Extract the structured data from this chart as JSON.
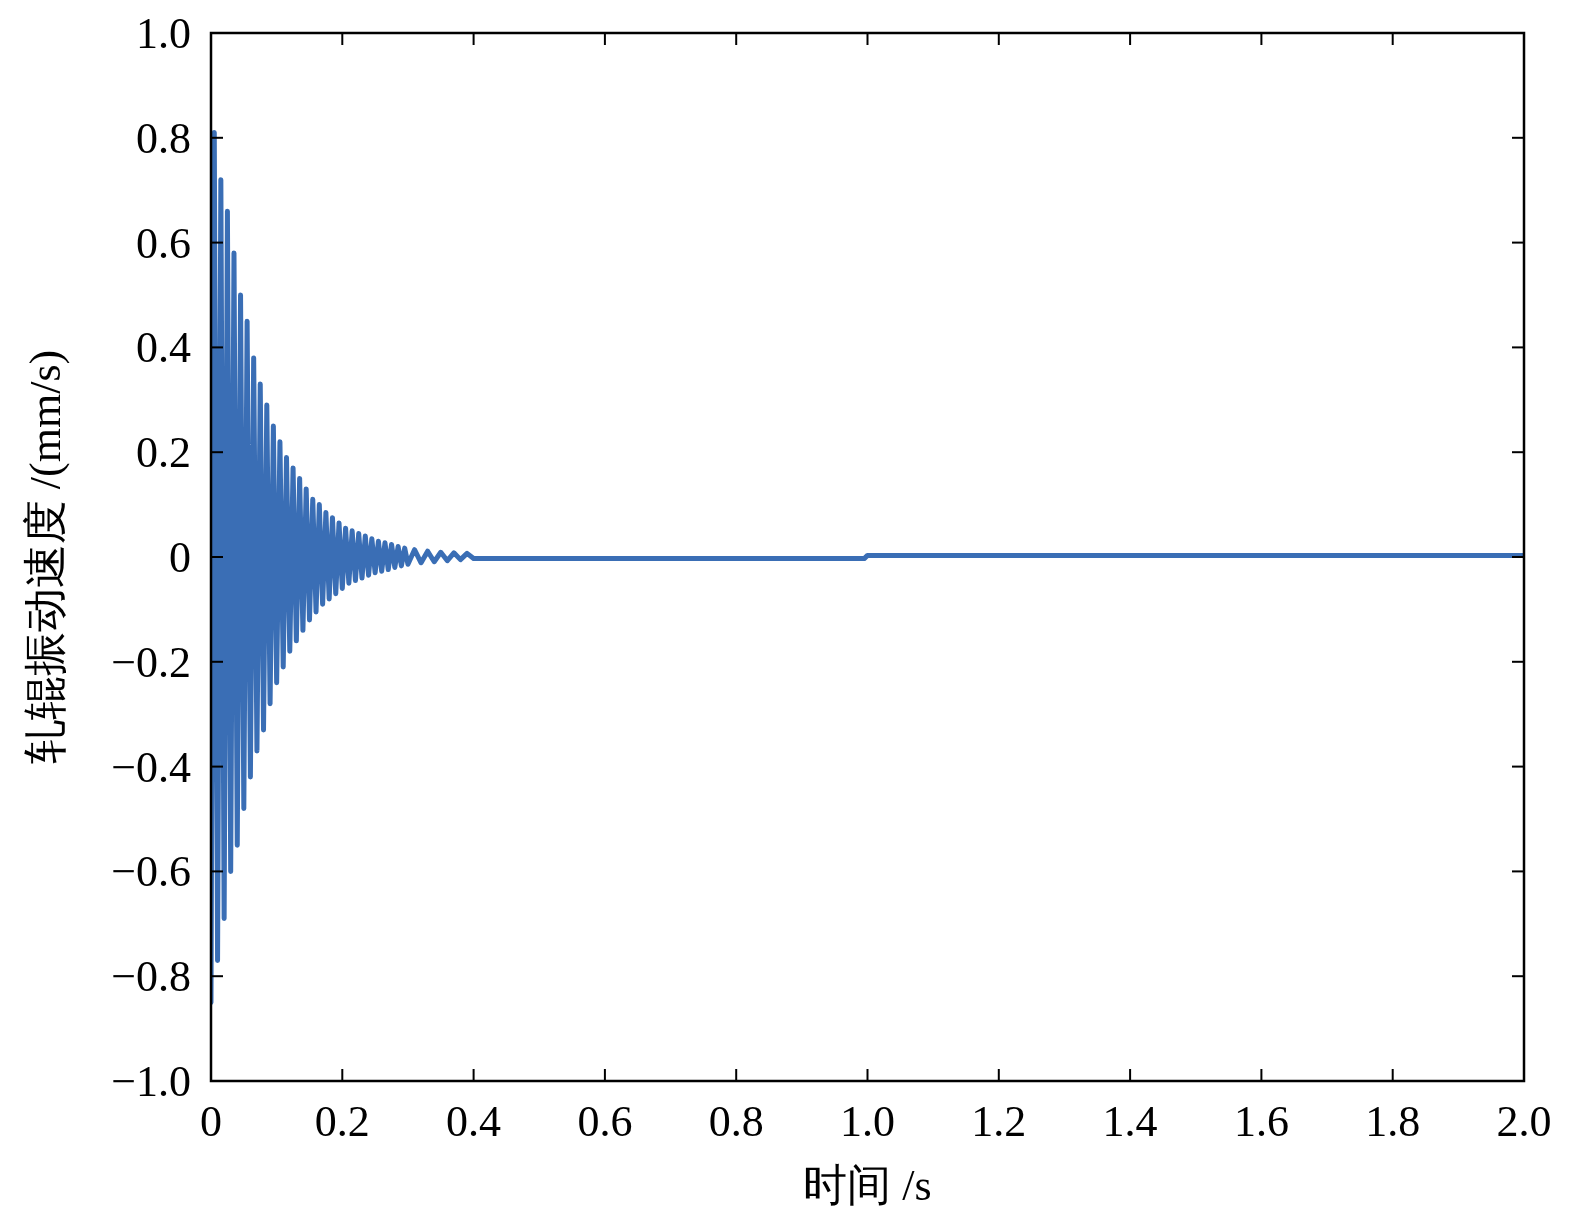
{
  "chart_data": {
    "type": "line",
    "xlabel": "时间 /s",
    "ylabel": "轧辊振动速度 /(mm/s)",
    "xlim": [
      0,
      2
    ],
    "ylim": [
      -1,
      1
    ],
    "xticks": [
      0,
      0.2,
      0.4,
      0.6,
      0.8,
      {
        "value": 1,
        "label": "1.0"
      },
      1.2,
      1.4,
      1.6,
      1.8,
      {
        "value": 2,
        "label": "2.0"
      }
    ],
    "yticks": [
      {
        "value": -1,
        "label": "−1.0"
      },
      {
        "value": -0.8,
        "label": "−0.8"
      },
      {
        "value": -0.6,
        "label": "−0.6"
      },
      {
        "value": -0.4,
        "label": "−0.4"
      },
      {
        "value": -0.2,
        "label": "−0.2"
      },
      0,
      0.2,
      0.4,
      0.6,
      0.8,
      {
        "value": 1,
        "label": "1.0"
      }
    ],
    "series": [
      {
        "color": "#3a6eb5",
        "x": [
          0,
          0.005,
          0.01,
          0.015,
          0.02,
          0.025,
          0.03,
          0.035,
          0.04,
          0.045,
          0.05,
          0.055,
          0.06,
          0.065,
          0.07,
          0.075,
          0.08,
          0.085,
          0.09,
          0.095,
          0.1,
          0.105,
          0.11,
          0.115,
          0.12,
          0.125,
          0.13,
          0.135,
          0.14,
          0.145,
          0.15,
          0.155,
          0.16,
          0.165,
          0.17,
          0.175,
          0.18,
          0.185,
          0.19,
          0.195,
          0.2,
          0.205,
          0.21,
          0.215,
          0.22,
          0.225,
          0.23,
          0.235,
          0.24,
          0.245,
          0.25,
          0.255,
          0.26,
          0.265,
          0.27,
          0.275,
          0.28,
          0.285,
          0.29,
          0.295,
          0.3,
          0.31,
          0.32,
          0.33,
          0.34,
          0.35,
          0.36,
          0.37,
          0.38,
          0.39,
          0.4,
          0.995,
          1.0,
          2.0
        ],
        "values": [
          -0.85,
          0.81,
          -0.77,
          0.72,
          -0.69,
          0.66,
          -0.6,
          0.58,
          -0.55,
          0.5,
          -0.48,
          0.45,
          -0.42,
          0.38,
          -0.37,
          0.33,
          -0.33,
          0.29,
          -0.28,
          0.25,
          -0.24,
          0.22,
          -0.21,
          0.19,
          -0.18,
          0.17,
          -0.16,
          0.15,
          -0.14,
          0.13,
          -0.12,
          0.11,
          -0.105,
          0.1,
          -0.09,
          0.085,
          -0.08,
          0.075,
          -0.07,
          0.065,
          -0.06,
          0.055,
          -0.05,
          0.05,
          -0.045,
          0.045,
          -0.04,
          0.04,
          -0.035,
          0.035,
          -0.03,
          0.03,
          -0.027,
          0.027,
          -0.024,
          0.024,
          -0.02,
          0.02,
          -0.017,
          0.017,
          -0.014,
          0.014,
          -0.011,
          0.011,
          -0.009,
          0.009,
          -0.007,
          0.008,
          -0.005,
          0.007,
          -0.003,
          -0.003,
          0.003,
          0.003
        ]
      }
    ]
  }
}
